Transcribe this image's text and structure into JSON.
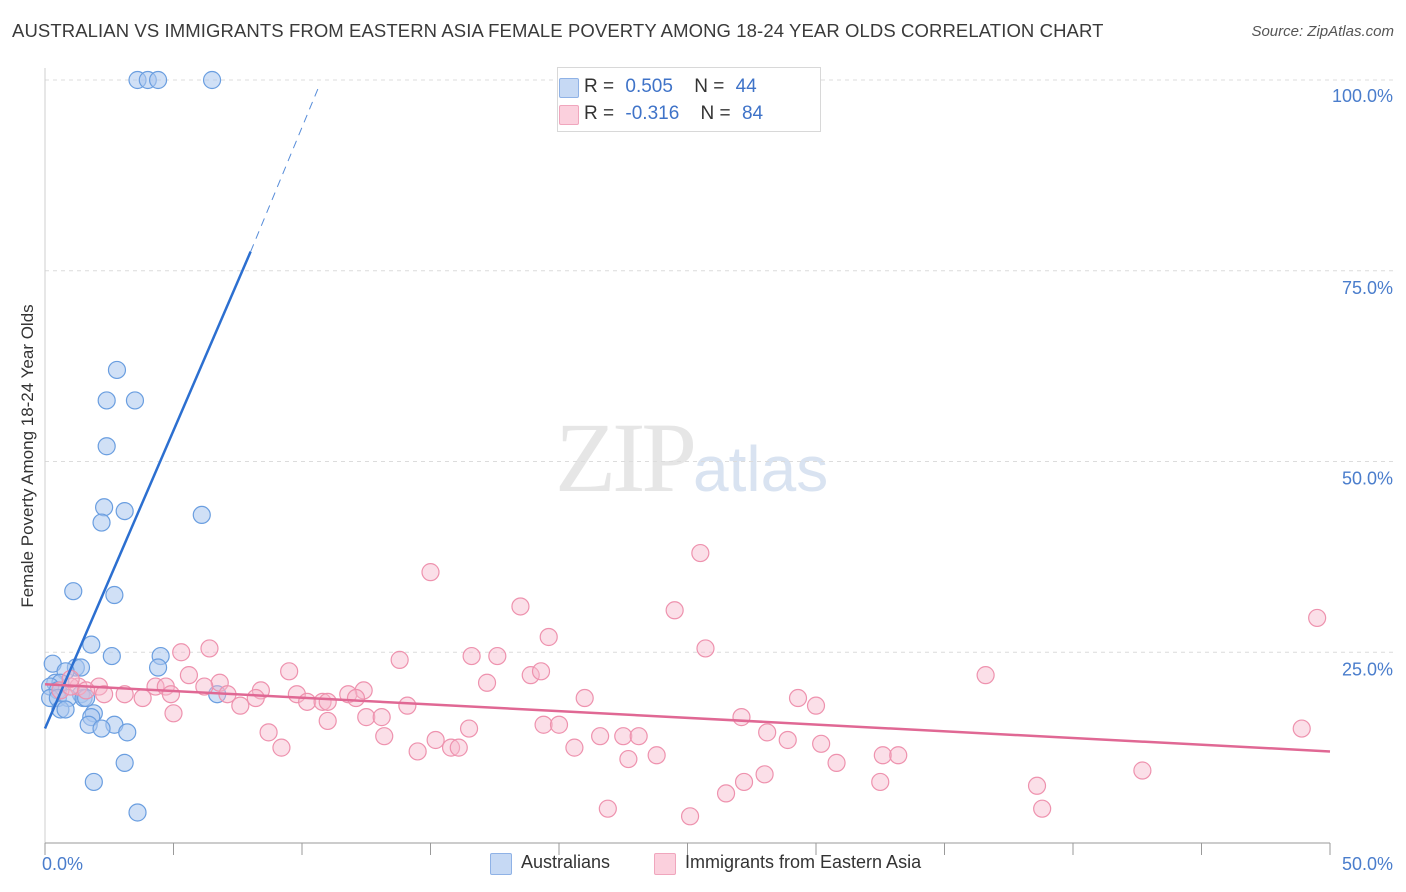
{
  "title": "AUSTRALIAN VS IMMIGRANTS FROM EASTERN ASIA FEMALE POVERTY AMONG 18-24 YEAR OLDS CORRELATION CHART",
  "source": "Source: ZipAtlas.com",
  "watermark": {
    "zip": "ZIP",
    "atlas": "atlas"
  },
  "legend": {
    "r_label": "R =",
    "n_label": "N =",
    "rows": [
      {
        "r": "0.505",
        "n": "44",
        "color": "#a9c6ef"
      },
      {
        "r": "-0.316",
        "n": "84",
        "color": "#f6b9cc"
      }
    ]
  },
  "bottom_legend": {
    "australians": "Australians",
    "immigrants": "Immigrants from Eastern Asia"
  },
  "chart_data": {
    "type": "scatter",
    "title": "AUSTRALIAN VS IMMIGRANTS FROM EASTERN ASIA FEMALE POVERTY AMONG 18-24 YEAR OLDS CORRELATION CHART",
    "xlabel": "",
    "ylabel": "Female Poverty Among 18-24 Year Olds",
    "xlim": [
      0,
      50
    ],
    "ylim": [
      0,
      100
    ],
    "x_tick_labels": [
      {
        "value": 0,
        "label": "0.0%"
      },
      {
        "value": 50,
        "label": "50.0%"
      }
    ],
    "y_tick_labels": [
      {
        "value": 25,
        "label": "25.0%"
      },
      {
        "value": 50,
        "label": "50.0%"
      },
      {
        "value": 75,
        "label": "75.0%"
      },
      {
        "value": 100,
        "label": "100.0%"
      }
    ],
    "grid": "horizontal dashed",
    "legend_position": "top-center",
    "series": [
      {
        "name": "Australians",
        "color": "#6a9ee0",
        "fill": "#a9c6ef",
        "trend": {
          "x": [
            0,
            8.0
          ],
          "y": [
            15.0,
            77.5
          ],
          "dashed_extension": {
            "x": [
              8.0,
              10.7
            ],
            "y": [
              77.5,
              99.5
            ]
          },
          "line_color": "#2c6fd0"
        },
        "points": [
          [
            3.6,
            100
          ],
          [
            4.0,
            100
          ],
          [
            4.4,
            100
          ],
          [
            6.5,
            100
          ],
          [
            2.8,
            62.0
          ],
          [
            2.4,
            58.0
          ],
          [
            3.5,
            58.0
          ],
          [
            2.4,
            52.0
          ],
          [
            2.3,
            44.0
          ],
          [
            3.1,
            43.5
          ],
          [
            6.1,
            43.0
          ],
          [
            2.2,
            42.0
          ],
          [
            1.1,
            33.0
          ],
          [
            2.7,
            32.5
          ],
          [
            1.8,
            26.0
          ],
          [
            2.6,
            24.5
          ],
          [
            4.5,
            24.5
          ],
          [
            0.3,
            23.5
          ],
          [
            1.2,
            23.0
          ],
          [
            1.4,
            23.0
          ],
          [
            0.8,
            22.5
          ],
          [
            4.4,
            23.0
          ],
          [
            0.4,
            21.0
          ],
          [
            0.6,
            21.0
          ],
          [
            0.2,
            20.5
          ],
          [
            0.5,
            20.0
          ],
          [
            1.4,
            19.5
          ],
          [
            0.2,
            19.0
          ],
          [
            0.5,
            19.0
          ],
          [
            0.9,
            19.0
          ],
          [
            1.5,
            19.0
          ],
          [
            1.6,
            19.0
          ],
          [
            6.7,
            19.5
          ],
          [
            0.6,
            17.5
          ],
          [
            1.9,
            17.0
          ],
          [
            1.8,
            16.5
          ],
          [
            1.7,
            15.5
          ],
          [
            2.7,
            15.5
          ],
          [
            2.2,
            15.0
          ],
          [
            3.2,
            14.5
          ],
          [
            0.8,
            17.5
          ],
          [
            3.1,
            10.5
          ],
          [
            1.9,
            8.0
          ],
          [
            3.6,
            4.0
          ]
        ]
      },
      {
        "name": "Immigrants from Eastern Asia",
        "color": "#ee92ae",
        "fill": "#f6b9cc",
        "trend": {
          "x": [
            0,
            50
          ],
          "y": [
            20.8,
            12.0
          ],
          "line_color": "#e06894"
        },
        "points": [
          [
            25.5,
            38.0
          ],
          [
            15.0,
            35.5
          ],
          [
            18.5,
            31.0
          ],
          [
            24.5,
            30.5
          ],
          [
            49.5,
            29.5
          ],
          [
            19.6,
            27.0
          ],
          [
            6.4,
            25.5
          ],
          [
            5.3,
            25.0
          ],
          [
            25.7,
            25.5
          ],
          [
            16.6,
            24.5
          ],
          [
            17.6,
            24.5
          ],
          [
            13.8,
            24.0
          ],
          [
            9.5,
            22.5
          ],
          [
            5.6,
            22.0
          ],
          [
            18.9,
            22.0
          ],
          [
            19.3,
            22.5
          ],
          [
            36.6,
            22.0
          ],
          [
            17.2,
            21.0
          ],
          [
            6.8,
            21.0
          ],
          [
            4.3,
            20.5
          ],
          [
            1.3,
            20.5
          ],
          [
            2.1,
            20.5
          ],
          [
            4.7,
            20.5
          ],
          [
            6.2,
            20.5
          ],
          [
            12.4,
            20.0
          ],
          [
            8.4,
            20.0
          ],
          [
            0.6,
            20.0
          ],
          [
            1.0,
            20.5
          ],
          [
            1.6,
            20.0
          ],
          [
            2.3,
            19.5
          ],
          [
            3.1,
            19.5
          ],
          [
            4.9,
            19.5
          ],
          [
            7.1,
            19.5
          ],
          [
            9.8,
            19.5
          ],
          [
            11.8,
            19.5
          ],
          [
            12.1,
            19.0
          ],
          [
            8.2,
            19.0
          ],
          [
            3.8,
            19.0
          ],
          [
            21.0,
            19.0
          ],
          [
            29.3,
            19.0
          ],
          [
            10.2,
            18.5
          ],
          [
            10.8,
            18.5
          ],
          [
            11.0,
            18.5
          ],
          [
            14.1,
            18.0
          ],
          [
            7.6,
            18.0
          ],
          [
            30.0,
            18.0
          ],
          [
            5.0,
            17.0
          ],
          [
            12.5,
            16.5
          ],
          [
            13.1,
            16.5
          ],
          [
            27.1,
            16.5
          ],
          [
            19.4,
            15.5
          ],
          [
            20.0,
            15.5
          ],
          [
            11.0,
            16.0
          ],
          [
            16.5,
            15.0
          ],
          [
            28.1,
            14.5
          ],
          [
            48.9,
            15.0
          ],
          [
            8.7,
            14.5
          ],
          [
            13.2,
            14.0
          ],
          [
            15.2,
            13.5
          ],
          [
            21.6,
            14.0
          ],
          [
            22.5,
            14.0
          ],
          [
            23.1,
            14.0
          ],
          [
            28.9,
            13.5
          ],
          [
            30.2,
            13.0
          ],
          [
            9.2,
            12.5
          ],
          [
            15.8,
            12.5
          ],
          [
            16.1,
            12.5
          ],
          [
            20.6,
            12.5
          ],
          [
            14.5,
            12.0
          ],
          [
            23.8,
            11.5
          ],
          [
            32.6,
            11.5
          ],
          [
            33.2,
            11.5
          ],
          [
            22.7,
            11.0
          ],
          [
            30.8,
            10.5
          ],
          [
            42.7,
            9.5
          ],
          [
            28.0,
            9.0
          ],
          [
            27.2,
            8.0
          ],
          [
            32.5,
            8.0
          ],
          [
            38.6,
            7.5
          ],
          [
            26.5,
            6.5
          ],
          [
            38.8,
            4.5
          ],
          [
            21.9,
            4.5
          ],
          [
            25.1,
            3.5
          ],
          [
            1.0,
            21.5
          ]
        ]
      }
    ]
  }
}
